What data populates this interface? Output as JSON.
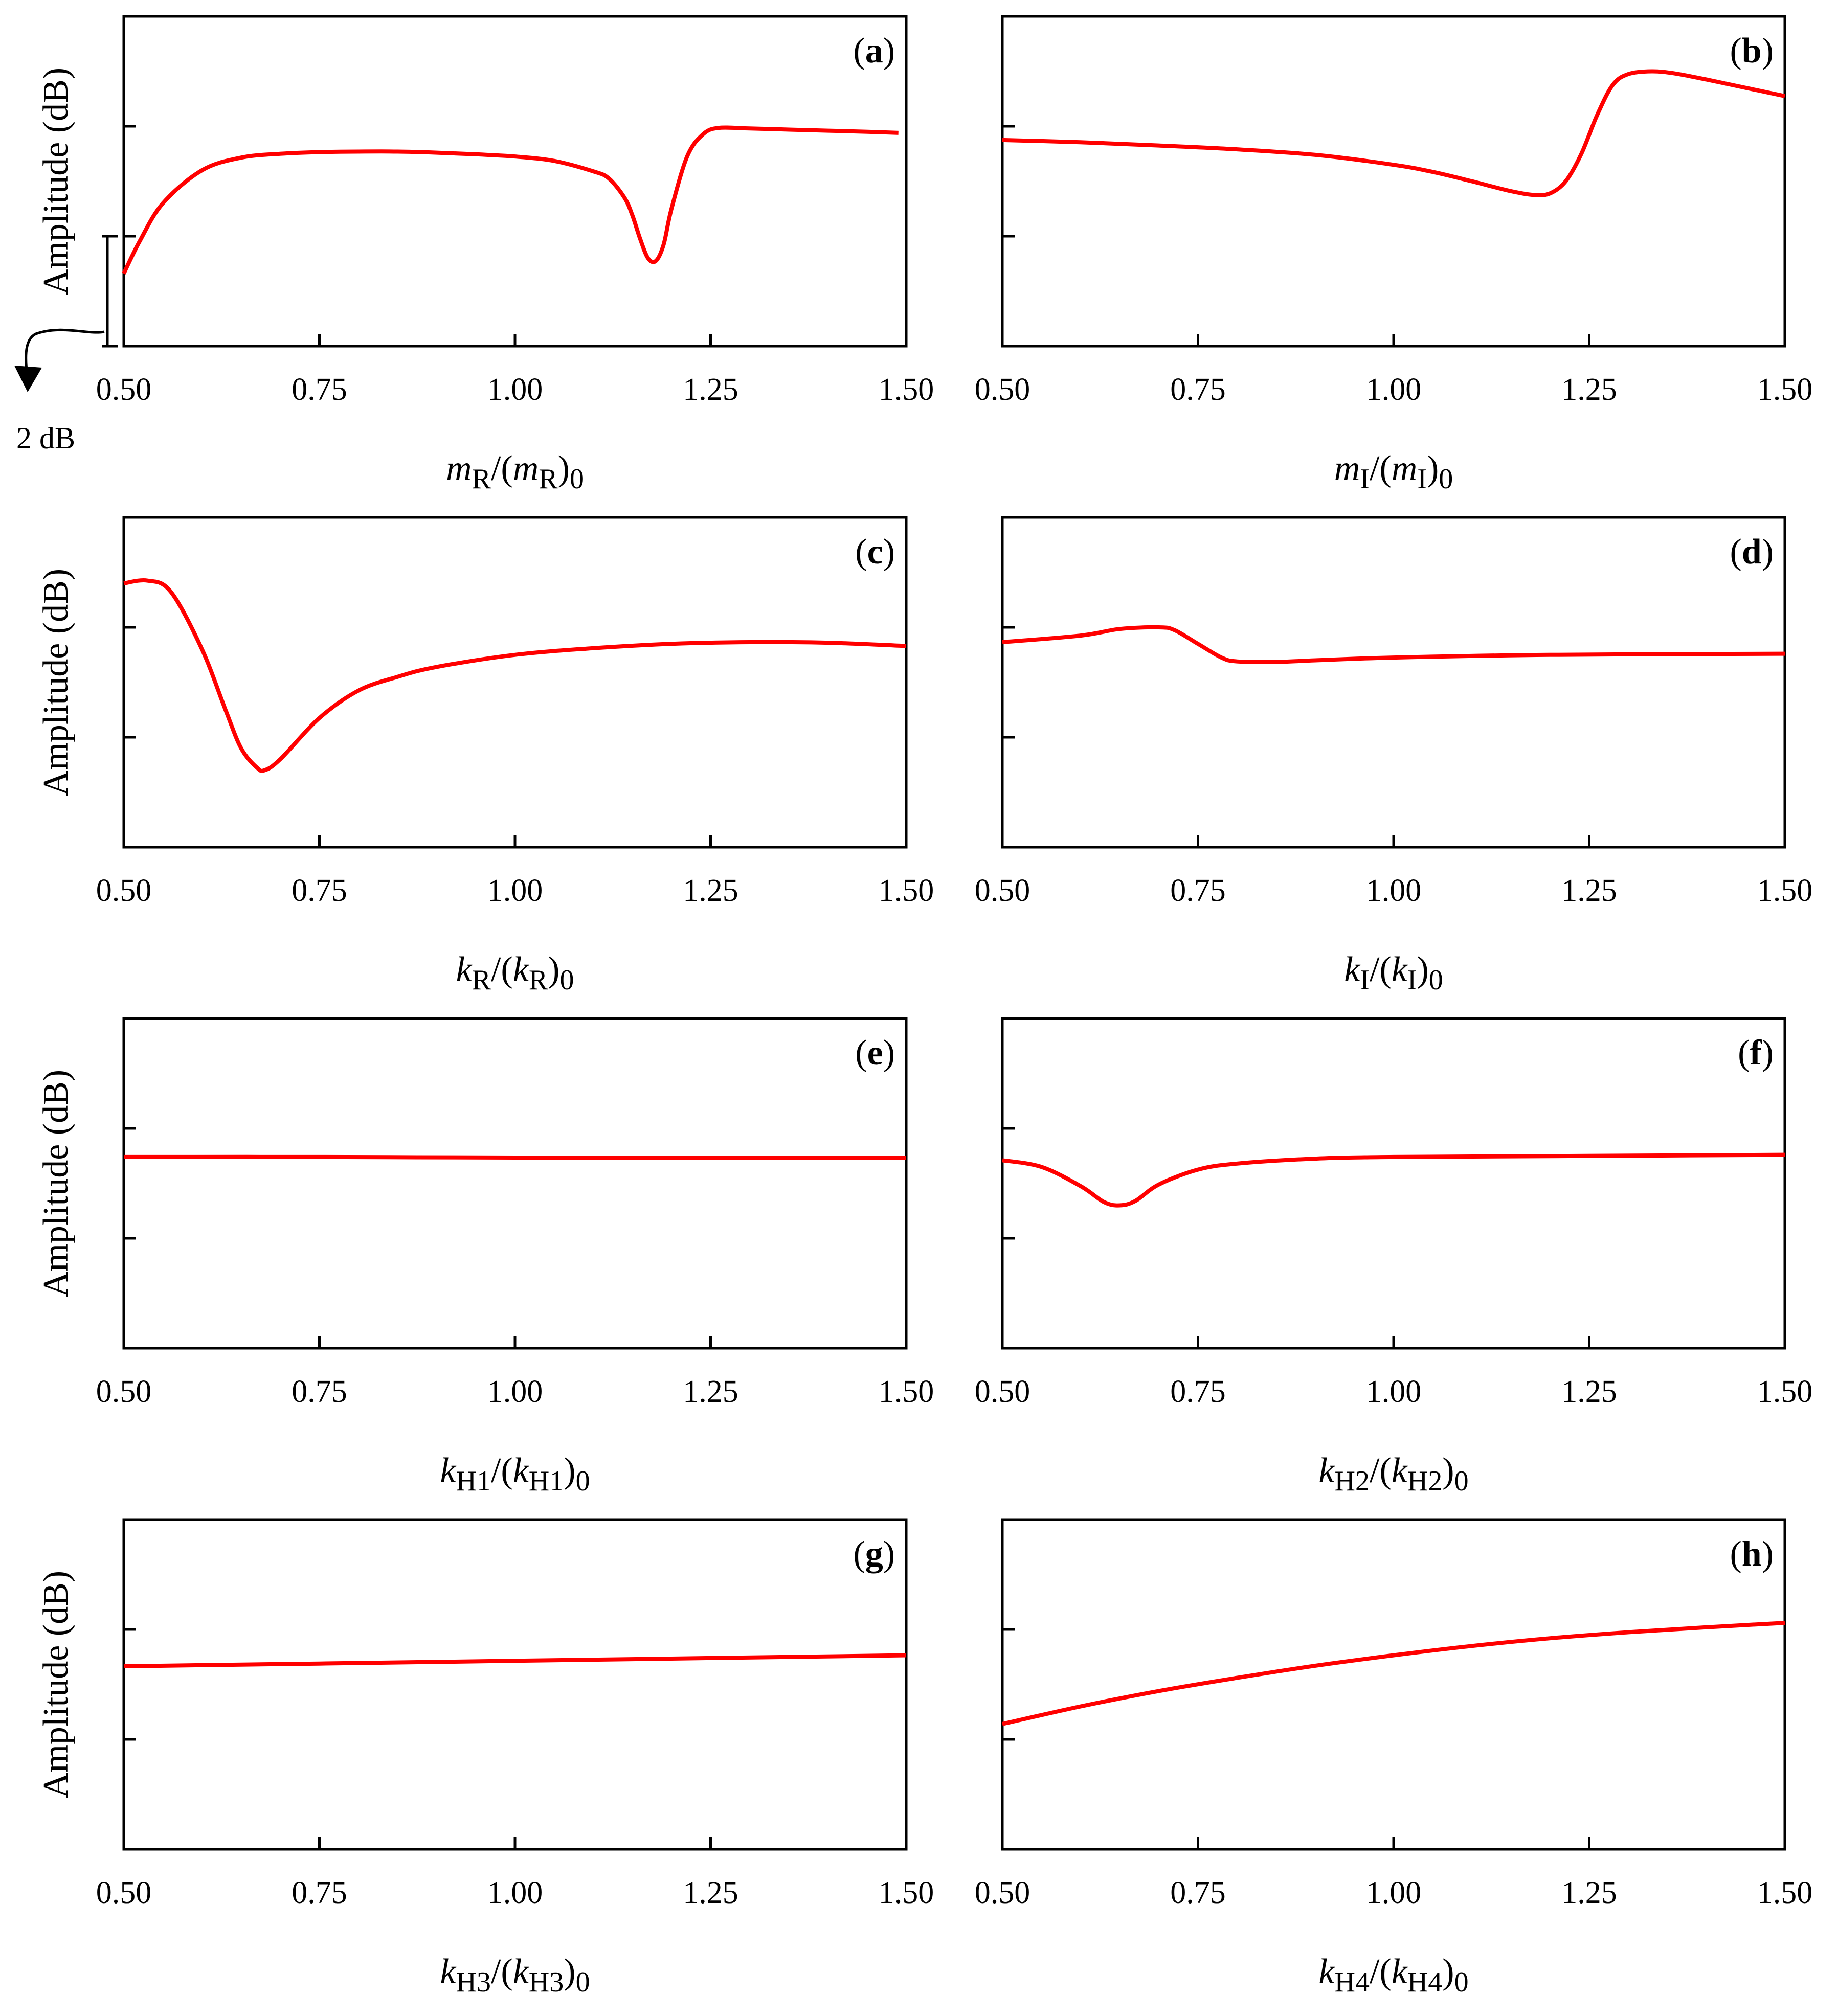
{
  "figure": {
    "scale_bar_label": "2 dB",
    "curve_color": "#ff0000",
    "axis_color": "#000000"
  },
  "chart_data": [
    {
      "type": "line",
      "panel_label": "(a)",
      "panel_letter": "a",
      "ylabel": "Amplitude (dB)",
      "xlabel": {
        "base": "m",
        "sub": "R"
      },
      "xlim": [
        0.5,
        1.5
      ],
      "ylim": [
        0,
        6
      ],
      "xticks": [
        "0.50",
        "0.75",
        "1.00",
        "1.25",
        "1.50"
      ],
      "series": [
        {
          "name": "Amplitude",
          "color": "#ff0000",
          "x": [
            0.5,
            0.52,
            0.55,
            0.6,
            0.65,
            0.7,
            0.75,
            0.8,
            0.85,
            0.9,
            0.95,
            1.0,
            1.05,
            1.1,
            1.12,
            1.14,
            1.15,
            1.16,
            1.17,
            1.18,
            1.19,
            1.2,
            1.22,
            1.24,
            1.26,
            1.3,
            1.35,
            1.4,
            1.45,
            1.49
          ],
          "y": [
            1.32,
            1.9,
            2.6,
            3.2,
            3.43,
            3.5,
            3.53,
            3.54,
            3.54,
            3.52,
            3.49,
            3.45,
            3.37,
            3.18,
            3.05,
            2.7,
            2.38,
            1.95,
            1.6,
            1.55,
            1.85,
            2.5,
            3.45,
            3.85,
            3.97,
            3.96,
            3.94,
            3.92,
            3.9,
            3.88
          ]
        }
      ]
    },
    {
      "type": "line",
      "panel_label": "(b)",
      "panel_letter": "b",
      "ylabel": "",
      "xlabel": {
        "base": "m",
        "sub": "I"
      },
      "xlim": [
        0.5,
        1.5
      ],
      "ylim": [
        0,
        6
      ],
      "xticks": [
        "0.50",
        "0.75",
        "1.00",
        "1.25",
        "1.50"
      ],
      "series": [
        {
          "name": "Amplitude",
          "color": "#ff0000",
          "x": [
            0.5,
            0.6,
            0.7,
            0.8,
            0.9,
            1.0,
            1.05,
            1.1,
            1.15,
            1.18,
            1.2,
            1.22,
            1.24,
            1.26,
            1.28,
            1.3,
            1.33,
            1.36,
            1.4,
            1.45,
            1.5
          ],
          "y": [
            3.75,
            3.71,
            3.65,
            3.58,
            3.48,
            3.3,
            3.17,
            3.0,
            2.82,
            2.75,
            2.78,
            3.0,
            3.5,
            4.2,
            4.75,
            4.95,
            5.0,
            4.96,
            4.85,
            4.7,
            4.55
          ]
        }
      ]
    },
    {
      "type": "line",
      "panel_label": "(c)",
      "panel_letter": "c",
      "ylabel": "Amplitude (dB)",
      "xlabel": {
        "base": "k",
        "sub": "R"
      },
      "xlim": [
        0.5,
        1.5
      ],
      "ylim": [
        0,
        6
      ],
      "xticks": [
        "0.50",
        "0.75",
        "1.00",
        "1.25",
        "1.50"
      ],
      "series": [
        {
          "name": "Amplitude",
          "color": "#ff0000",
          "x": [
            0.5,
            0.53,
            0.56,
            0.6,
            0.63,
            0.65,
            0.67,
            0.68,
            0.7,
            0.75,
            0.8,
            0.85,
            0.9,
            1.0,
            1.1,
            1.2,
            1.3,
            1.4,
            1.5
          ],
          "y": [
            4.8,
            4.85,
            4.65,
            3.6,
            2.5,
            1.8,
            1.45,
            1.4,
            1.6,
            2.35,
            2.85,
            3.1,
            3.28,
            3.5,
            3.62,
            3.7,
            3.73,
            3.72,
            3.66
          ]
        }
      ]
    },
    {
      "type": "line",
      "panel_label": "(d)",
      "panel_letter": "d",
      "ylabel": "",
      "xlabel": {
        "base": "k",
        "sub": "I"
      },
      "xlim": [
        0.5,
        1.5
      ],
      "ylim": [
        0,
        6
      ],
      "xticks": [
        "0.50",
        "0.75",
        "1.00",
        "1.25",
        "1.50"
      ],
      "series": [
        {
          "name": "Amplitude",
          "color": "#ff0000",
          "x": [
            0.5,
            0.6,
            0.65,
            0.7,
            0.72,
            0.75,
            0.78,
            0.8,
            0.85,
            0.9,
            1.0,
            1.2,
            1.5
          ],
          "y": [
            3.73,
            3.85,
            3.97,
            4.0,
            3.95,
            3.7,
            3.45,
            3.38,
            3.37,
            3.4,
            3.45,
            3.5,
            3.52
          ]
        }
      ]
    },
    {
      "type": "line",
      "panel_label": "(e)",
      "panel_letter": "e",
      "ylabel": "Amplitude (dB)",
      "xlabel": {
        "base": "k",
        "sub": "H1"
      },
      "xlim": [
        0.5,
        1.5
      ],
      "ylim": [
        0,
        6
      ],
      "xticks": [
        "0.50",
        "0.75",
        "1.00",
        "1.25",
        "1.50"
      ],
      "series": [
        {
          "name": "Amplitude",
          "color": "#ff0000",
          "x": [
            0.5,
            0.75,
            1.0,
            1.25,
            1.5
          ],
          "y": [
            3.48,
            3.48,
            3.47,
            3.47,
            3.47
          ]
        }
      ]
    },
    {
      "type": "line",
      "panel_label": "(f)",
      "panel_letter": "f",
      "ylabel": "",
      "xlabel": {
        "base": "k",
        "sub": "H2"
      },
      "xlim": [
        0.5,
        1.5
      ],
      "ylim": [
        0,
        6
      ],
      "xticks": [
        "0.50",
        "0.75",
        "1.00",
        "1.25",
        "1.50"
      ],
      "series": [
        {
          "name": "Amplitude",
          "color": "#ff0000",
          "x": [
            0.5,
            0.55,
            0.6,
            0.63,
            0.65,
            0.67,
            0.7,
            0.75,
            0.8,
            0.9,
            1.0,
            1.25,
            1.5
          ],
          "y": [
            3.42,
            3.3,
            2.95,
            2.66,
            2.6,
            2.68,
            2.98,
            3.25,
            3.36,
            3.45,
            3.48,
            3.5,
            3.52
          ]
        }
      ]
    },
    {
      "type": "line",
      "panel_label": "(g)",
      "panel_letter": "g",
      "ylabel": "Amplitude (dB)",
      "xlabel": {
        "base": "k",
        "sub": "H3"
      },
      "xlim": [
        0.5,
        1.5
      ],
      "ylim": [
        0,
        6
      ],
      "xticks": [
        "0.50",
        "0.75",
        "1.00",
        "1.25",
        "1.50"
      ],
      "series": [
        {
          "name": "Amplitude",
          "color": "#ff0000",
          "x": [
            0.5,
            0.75,
            1.0,
            1.25,
            1.5
          ],
          "y": [
            3.33,
            3.38,
            3.43,
            3.48,
            3.53
          ]
        }
      ]
    },
    {
      "type": "line",
      "panel_label": "(h)",
      "panel_letter": "h",
      "ylabel": "",
      "xlabel": {
        "base": "k",
        "sub": "H4"
      },
      "xlim": [
        0.5,
        1.5
      ],
      "ylim": [
        0,
        6
      ],
      "xticks": [
        "0.50",
        "0.75",
        "1.00",
        "1.25",
        "1.50"
      ],
      "series": [
        {
          "name": "Amplitude",
          "color": "#ff0000",
          "x": [
            0.5,
            0.6,
            0.7,
            0.8,
            0.9,
            1.0,
            1.1,
            1.2,
            1.3,
            1.4,
            1.5
          ],
          "y": [
            2.28,
            2.6,
            2.88,
            3.12,
            3.34,
            3.53,
            3.7,
            3.84,
            3.95,
            4.04,
            4.12
          ]
        }
      ]
    }
  ]
}
